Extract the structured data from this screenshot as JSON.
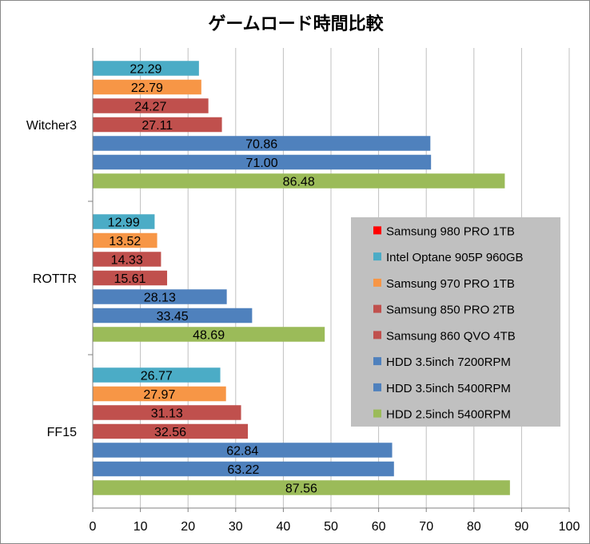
{
  "chart_data": {
    "type": "bar",
    "orientation": "horizontal",
    "title": "ゲームロード時間比較",
    "categories": [
      "Witcher3",
      "ROTTR",
      "FF15"
    ],
    "xlim": [
      0,
      100
    ],
    "xticks": [
      0,
      10,
      20,
      30,
      40,
      50,
      60,
      70,
      80,
      90,
      100
    ],
    "grid": true,
    "legend_position": "right",
    "series": [
      {
        "name": "Samsung 980 PRO 1TB",
        "color": "#ff0000",
        "values": [
          null,
          null,
          null
        ]
      },
      {
        "name": "Intel Optane 905P 960GB",
        "color": "#4bacc6",
        "values": [
          22.29,
          12.99,
          26.77
        ]
      },
      {
        "name": "Samsung 970 PRO 1TB",
        "color": "#f79646",
        "values": [
          22.79,
          13.52,
          27.97
        ]
      },
      {
        "name": "Samsung 850 PRO 2TB",
        "color": "#c0504d",
        "values": [
          24.27,
          14.33,
          31.13
        ]
      },
      {
        "name": "Samsung 860 QVO 4TB",
        "color": "#c0504d",
        "values": [
          27.11,
          15.61,
          32.56
        ]
      },
      {
        "name": "HDD 3.5inch 7200RPM",
        "color": "#4f81bd",
        "values": [
          70.86,
          28.13,
          62.84
        ]
      },
      {
        "name": "HDD 3.5inch 5400RPM",
        "color": "#4f81bd",
        "values": [
          71.0,
          33.45,
          63.22
        ]
      },
      {
        "name": "HDD 2.5inch 5400RPM",
        "color": "#9bbb59",
        "values": [
          86.48,
          48.69,
          87.56
        ]
      }
    ]
  }
}
